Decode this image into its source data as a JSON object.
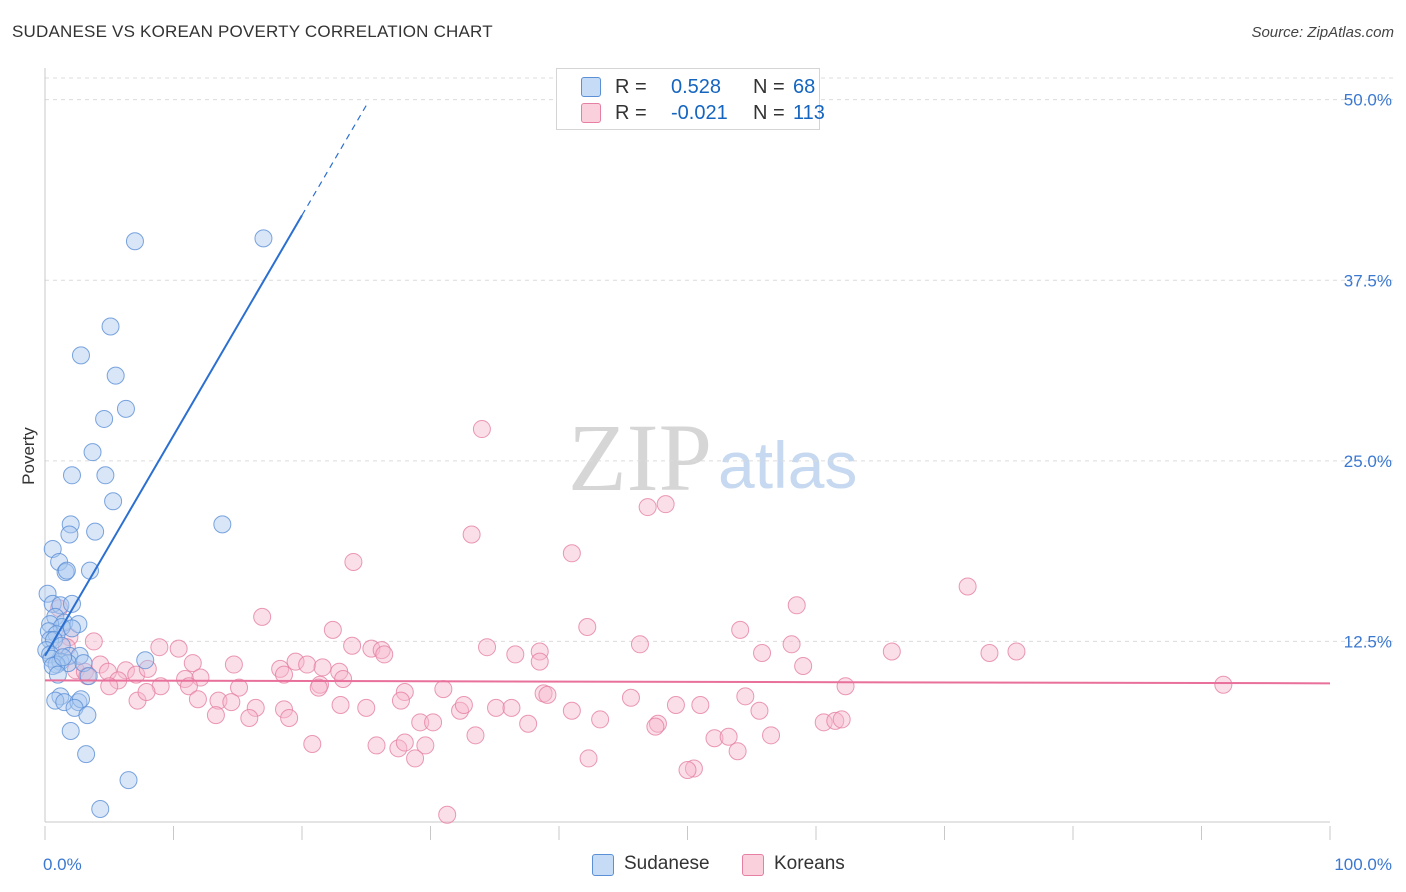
{
  "title": "SUDANESE VS KOREAN POVERTY CORRELATION CHART",
  "source": "Source: ZipAtlas.com",
  "watermark": {
    "zip": "ZIP",
    "atlas": "atlas"
  },
  "colors": {
    "sudanese_fill": "#a8c8f0",
    "sudanese_stroke": "#5b8fd6",
    "sudanese_line": "#2b6fd1",
    "koreans_fill": "#f7b8cc",
    "koreans_stroke": "#e57fa3",
    "koreans_line": "#e8709a",
    "tick_label": "#3b78d0",
    "grid": "#dcdcdc"
  },
  "stats": {
    "sudanese": {
      "r_label": "R =",
      "r_value": "0.528",
      "n_label": "N =",
      "n_value": "68"
    },
    "koreans": {
      "r_label": "R =",
      "r_value": "-0.021",
      "n_label": "N =",
      "n_value": "113"
    }
  },
  "legend": {
    "sudanese": "Sudanese",
    "koreans": "Koreans"
  },
  "chart_data": {
    "type": "scatter",
    "title": "SUDANESE VS KOREAN POVERTY CORRELATION CHART",
    "xlabel": "",
    "ylabel": "Poverty",
    "xlim": [
      0,
      100
    ],
    "ylim": [
      0,
      51.5
    ],
    "x_tick_labels": {
      "min": "0.0%",
      "max": "100.0%"
    },
    "y_ticks": [
      12.5,
      25.0,
      37.5,
      50.0
    ],
    "y_tick_labels": [
      "12.5%",
      "25.0%",
      "37.5%",
      "50.0%"
    ],
    "grid": "horizontal dashed",
    "series": [
      {
        "name": "Sudanese",
        "trend": {
          "x1": 0,
          "y1": 11.5,
          "x2": 20,
          "y2": 42.0,
          "dash_to_x": 25,
          "dash_to_y": 49.6
        },
        "points": [
          [
            7.0,
            40.2
          ],
          [
            17.0,
            40.4
          ],
          [
            5.1,
            34.3
          ],
          [
            2.8,
            32.3
          ],
          [
            5.5,
            30.9
          ],
          [
            6.3,
            28.6
          ],
          [
            4.6,
            27.9
          ],
          [
            3.7,
            25.6
          ],
          [
            2.1,
            24.0
          ],
          [
            4.7,
            24.0
          ],
          [
            5.3,
            22.2
          ],
          [
            13.8,
            20.6
          ],
          [
            2.0,
            20.6
          ],
          [
            1.9,
            19.9
          ],
          [
            3.9,
            20.1
          ],
          [
            0.6,
            18.9
          ],
          [
            1.1,
            18.0
          ],
          [
            1.6,
            17.3
          ],
          [
            1.7,
            17.4
          ],
          [
            3.5,
            17.4
          ],
          [
            0.2,
            15.8
          ],
          [
            0.6,
            15.1
          ],
          [
            1.2,
            15.0
          ],
          [
            2.1,
            15.1
          ],
          [
            0.8,
            14.2
          ],
          [
            1.5,
            13.8
          ],
          [
            0.4,
            13.7
          ],
          [
            1.3,
            13.5
          ],
          [
            2.6,
            13.7
          ],
          [
            0.3,
            13.2
          ],
          [
            0.9,
            13.0
          ],
          [
            2.1,
            13.4
          ],
          [
            0.4,
            12.6
          ],
          [
            0.7,
            12.6
          ],
          [
            1.3,
            12.2
          ],
          [
            0.1,
            11.9
          ],
          [
            0.4,
            11.6
          ],
          [
            1.9,
            11.5
          ],
          [
            2.7,
            11.5
          ],
          [
            0.5,
            11.3
          ],
          [
            1.2,
            11.1
          ],
          [
            1.8,
            11.0
          ],
          [
            3.0,
            11.0
          ],
          [
            0.9,
            10.9
          ],
          [
            0.6,
            10.8
          ],
          [
            1.4,
            11.4
          ],
          [
            7.8,
            11.2
          ],
          [
            1.0,
            10.2
          ],
          [
            3.4,
            10.1
          ],
          [
            1.2,
            8.7
          ],
          [
            0.8,
            8.4
          ],
          [
            1.5,
            8.3
          ],
          [
            2.6,
            8.3
          ],
          [
            2.8,
            8.5
          ],
          [
            2.3,
            7.9
          ],
          [
            3.3,
            7.4
          ],
          [
            2.0,
            6.3
          ],
          [
            3.2,
            4.7
          ],
          [
            6.5,
            2.9
          ],
          [
            4.3,
            0.9
          ]
        ]
      },
      {
        "name": "Koreans",
        "trend": {
          "x1": 0,
          "y1": 9.8,
          "x2": 100,
          "y2": 9.6
        },
        "points": [
          [
            34.0,
            27.2
          ],
          [
            46.9,
            21.8
          ],
          [
            48.3,
            22.0
          ],
          [
            33.2,
            19.9
          ],
          [
            41.0,
            18.6
          ],
          [
            24.0,
            18.0
          ],
          [
            71.8,
            16.3
          ],
          [
            58.5,
            15.0
          ],
          [
            16.9,
            14.2
          ],
          [
            42.2,
            13.5
          ],
          [
            22.4,
            13.3
          ],
          [
            54.1,
            13.3
          ],
          [
            1.1,
            14.8
          ],
          [
            1.9,
            12.8
          ],
          [
            1.7,
            12.1
          ],
          [
            3.8,
            12.5
          ],
          [
            8.9,
            12.1
          ],
          [
            10.4,
            12.0
          ],
          [
            46.3,
            12.3
          ],
          [
            58.1,
            12.3
          ],
          [
            23.9,
            12.2
          ],
          [
            25.4,
            12.0
          ],
          [
            26.2,
            11.9
          ],
          [
            26.4,
            11.6
          ],
          [
            34.4,
            12.1
          ],
          [
            36.6,
            11.6
          ],
          [
            38.5,
            11.8
          ],
          [
            38.5,
            11.1
          ],
          [
            55.8,
            11.7
          ],
          [
            65.9,
            11.8
          ],
          [
            73.5,
            11.7
          ],
          [
            75.6,
            11.8
          ],
          [
            11.5,
            11.0
          ],
          [
            14.7,
            10.9
          ],
          [
            19.5,
            11.1
          ],
          [
            20.4,
            10.9
          ],
          [
            21.6,
            10.7
          ],
          [
            22.9,
            10.4
          ],
          [
            59.0,
            10.8
          ],
          [
            18.3,
            10.6
          ],
          [
            4.3,
            10.9
          ],
          [
            4.9,
            10.4
          ],
          [
            6.3,
            10.5
          ],
          [
            7.1,
            10.2
          ],
          [
            8.0,
            10.6
          ],
          [
            2.4,
            10.5
          ],
          [
            3.1,
            10.4
          ],
          [
            3.3,
            10.1
          ],
          [
            5.7,
            9.8
          ],
          [
            10.9,
            9.9
          ],
          [
            12.1,
            10.0
          ],
          [
            18.6,
            10.2
          ],
          [
            23.2,
            9.9
          ],
          [
            21.4,
            9.5
          ],
          [
            9.0,
            9.4
          ],
          [
            11.2,
            9.4
          ],
          [
            15.1,
            9.3
          ],
          [
            21.3,
            9.3
          ],
          [
            28.0,
            9.0
          ],
          [
            31.0,
            9.2
          ],
          [
            38.8,
            8.9
          ],
          [
            39.1,
            8.8
          ],
          [
            62.3,
            9.4
          ],
          [
            91.7,
            9.5
          ],
          [
            11.9,
            8.5
          ],
          [
            13.5,
            8.4
          ],
          [
            14.5,
            8.3
          ],
          [
            7.2,
            8.4
          ],
          [
            5.0,
            9.4
          ],
          [
            7.9,
            9.0
          ],
          [
            27.7,
            8.4
          ],
          [
            45.6,
            8.6
          ],
          [
            49.1,
            8.1
          ],
          [
            51.0,
            8.1
          ],
          [
            54.5,
            8.7
          ],
          [
            23.0,
            8.1
          ],
          [
            25.0,
            7.9
          ],
          [
            35.1,
            7.9
          ],
          [
            36.3,
            7.9
          ],
          [
            16.4,
            7.9
          ],
          [
            18.6,
            7.8
          ],
          [
            32.3,
            7.7
          ],
          [
            32.6,
            8.1
          ],
          [
            41.0,
            7.7
          ],
          [
            55.6,
            7.7
          ],
          [
            13.3,
            7.4
          ],
          [
            15.9,
            7.2
          ],
          [
            19.0,
            7.2
          ],
          [
            37.6,
            6.8
          ],
          [
            43.2,
            7.1
          ],
          [
            47.7,
            6.8
          ],
          [
            47.5,
            6.6
          ],
          [
            60.6,
            6.9
          ],
          [
            61.5,
            7.0
          ],
          [
            62.0,
            7.1
          ],
          [
            29.2,
            6.9
          ],
          [
            30.2,
            6.9
          ],
          [
            33.5,
            6.0
          ],
          [
            56.5,
            6.0
          ],
          [
            52.1,
            5.8
          ],
          [
            53.2,
            5.9
          ],
          [
            20.8,
            5.4
          ],
          [
            25.8,
            5.3
          ],
          [
            27.5,
            5.1
          ],
          [
            28.0,
            5.5
          ],
          [
            29.6,
            5.3
          ],
          [
            53.9,
            4.9
          ],
          [
            42.3,
            4.4
          ],
          [
            28.8,
            4.4
          ],
          [
            50.5,
            3.7
          ],
          [
            50.0,
            3.6
          ],
          [
            31.3,
            0.5
          ]
        ]
      }
    ]
  }
}
